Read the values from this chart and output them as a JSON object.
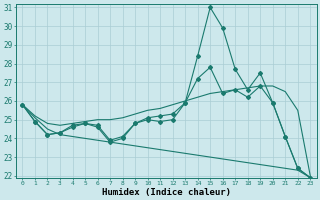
{
  "xlabel": "Humidex (Indice chaleur)",
  "x": [
    0,
    1,
    2,
    3,
    4,
    5,
    6,
    7,
    8,
    9,
    10,
    11,
    12,
    13,
    14,
    15,
    16,
    17,
    18,
    19,
    20,
    21,
    22,
    23
  ],
  "line1": [
    25.8,
    24.9,
    24.2,
    24.3,
    24.7,
    24.8,
    24.6,
    23.8,
    24.0,
    24.8,
    25.0,
    24.9,
    25.0,
    25.9,
    28.4,
    31.0,
    29.9,
    27.7,
    26.6,
    27.5,
    25.9,
    24.1,
    22.4,
    21.9
  ],
  "line2": [
    25.8,
    24.9,
    24.2,
    24.3,
    24.6,
    24.8,
    24.7,
    23.9,
    24.1,
    24.8,
    25.1,
    25.2,
    25.3,
    25.9,
    27.2,
    27.8,
    26.4,
    26.6,
    26.2,
    26.8,
    25.9,
    24.1,
    22.4,
    21.9
  ],
  "line3": [
    25.8,
    25.2,
    24.8,
    24.7,
    24.8,
    24.9,
    25.0,
    25.0,
    25.1,
    25.3,
    25.5,
    25.6,
    25.8,
    26.0,
    26.2,
    26.4,
    26.5,
    26.6,
    26.7,
    26.8,
    26.8,
    26.5,
    25.5,
    22.0
  ],
  "line4": [
    25.8,
    25.1,
    24.5,
    24.2,
    24.1,
    24.0,
    23.9,
    23.8,
    23.7,
    23.6,
    23.5,
    23.4,
    23.3,
    23.2,
    23.1,
    23.0,
    22.9,
    22.8,
    22.7,
    22.6,
    22.5,
    22.4,
    22.3,
    21.9
  ],
  "color": "#1a7a6e",
  "bg_color": "#cde8ec",
  "grid_color": "#aacdd4",
  "ylim": [
    21.9,
    31.2
  ],
  "yticks": [
    22,
    23,
    24,
    25,
    26,
    27,
    28,
    29,
    30,
    31
  ],
  "xticks": [
    0,
    1,
    2,
    3,
    4,
    5,
    6,
    7,
    8,
    9,
    10,
    11,
    12,
    13,
    14,
    15,
    16,
    17,
    18,
    19,
    20,
    21,
    22,
    23
  ]
}
